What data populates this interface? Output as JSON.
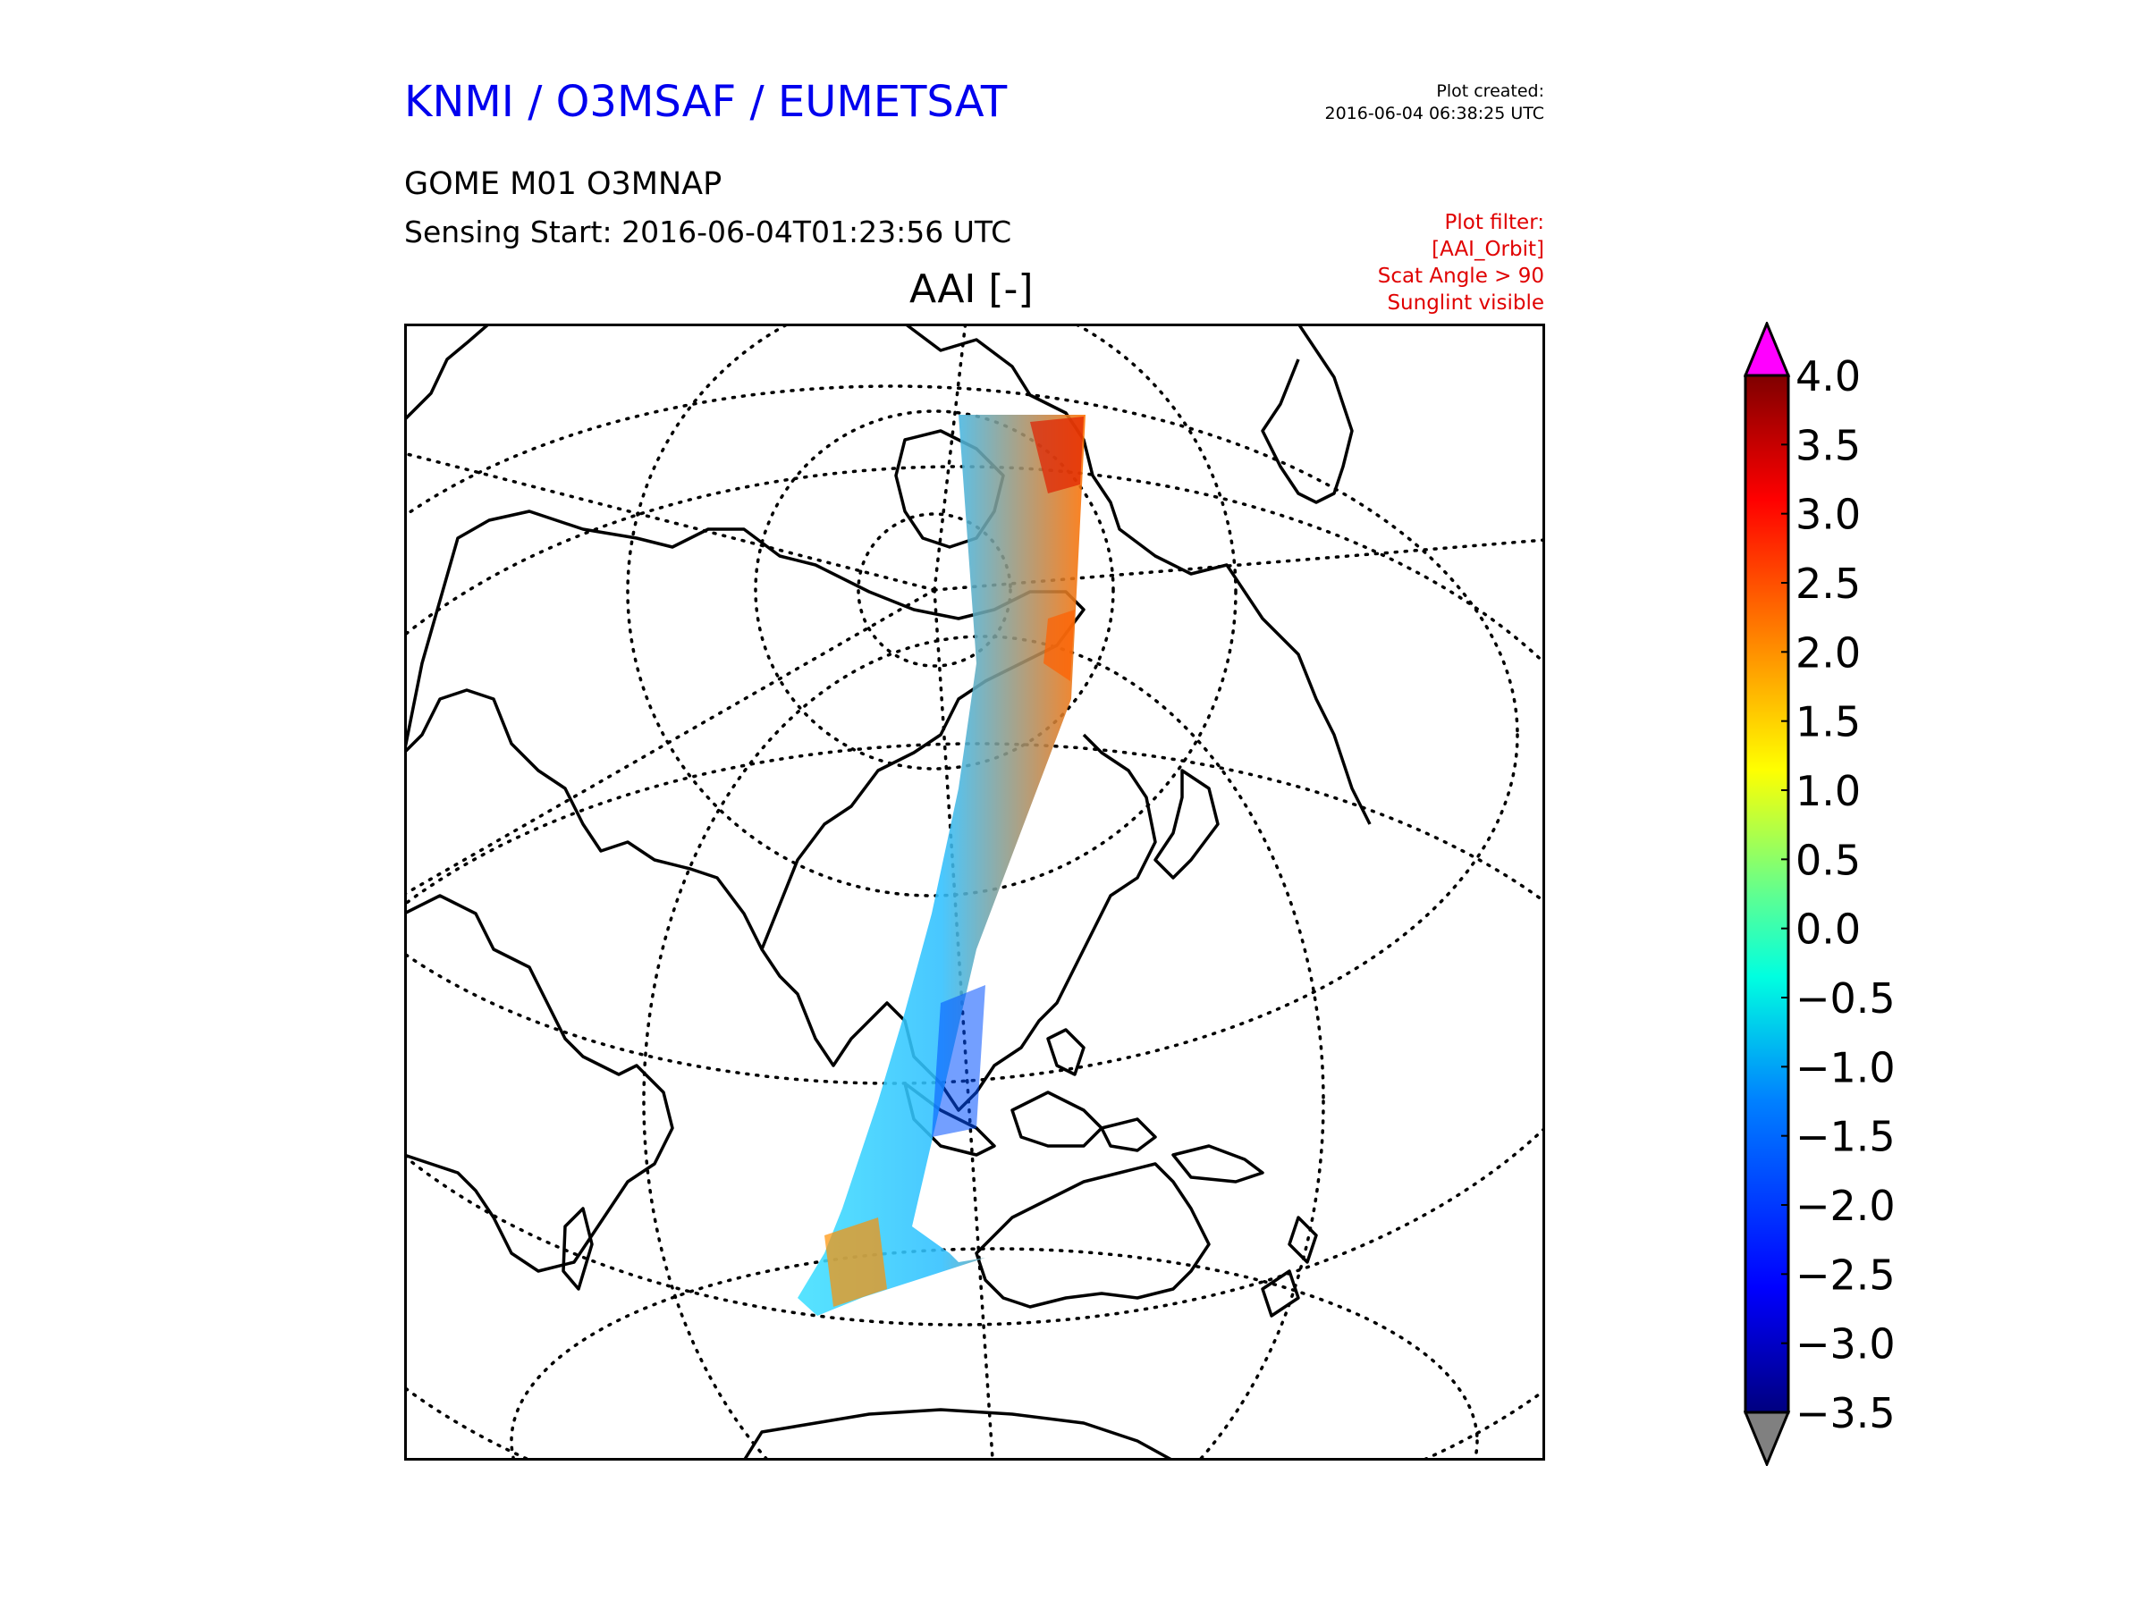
{
  "header": {
    "org_title": "KNMI / O3MSAF / EUMETSAT",
    "created_label": "Plot created:",
    "created_time": "2016-06-04 06:38:25 UTC",
    "product": "GOME M01 O3MNAP",
    "sensing_start": "Sensing Start: 2016-06-04T01:23:56 UTC"
  },
  "filter": {
    "label": "Plot filter:",
    "lines": [
      "[AAI_Orbit]",
      "Scat Angle > 90",
      "Sunglint visible"
    ]
  },
  "map": {
    "title": "AAI [-]",
    "projection": "polar / azimuthal, north-pole centred",
    "gridlines": "dotted",
    "swath_colors": [
      "#00a0ff",
      "#20d0ff",
      "#40ff90",
      "#c0ff20",
      "#ffd000",
      "#ff6000",
      "#e01000"
    ]
  },
  "colorbar": {
    "ticks": [
      "4.0",
      "3.5",
      "3.0",
      "2.5",
      "2.0",
      "1.5",
      "1.0",
      "0.5",
      "0.0",
      "−0.5",
      "−1.0",
      "−1.5",
      "−2.0",
      "−2.5",
      "−3.0",
      "−3.5"
    ],
    "min": -3.5,
    "max": 4.0,
    "extend_max_color": "#ff00ff",
    "extend_min_color": "#808080",
    "colormap": [
      "#00007f",
      "#0000ff",
      "#0080ff",
      "#00ffff",
      "#80ff80",
      "#ffff00",
      "#ff8000",
      "#ff0000",
      "#7f0000"
    ]
  }
}
